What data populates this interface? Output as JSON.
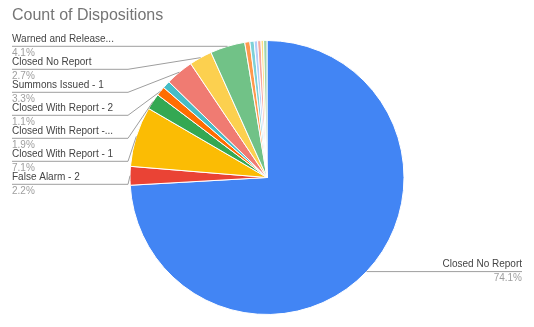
{
  "chart_data": {
    "type": "pie",
    "title": "Count of Dispositions",
    "categories": [
      "Closed No Report",
      "False Alarm - 2",
      "Closed With Report - 1",
      "Closed With Report -...",
      "Closed With Report - 2",
      null,
      "Summons Issued - 1",
      "Closed No Report",
      "Warned and Release...",
      null,
      null,
      null,
      null,
      null,
      null
    ],
    "values": [
      74.1,
      2.2,
      7.1,
      1.9,
      1.1,
      0.9,
      3.3,
      2.7,
      4.1,
      0.6,
      0.5,
      0.4,
      0.4,
      0.3,
      0.4
    ],
    "value_labels": [
      "74.1%",
      "2.2%",
      "7.1%",
      "1.9%",
      "1.1%",
      null,
      "3.3%",
      "2.7%",
      "4.1%",
      null,
      null,
      null,
      null,
      null,
      null
    ],
    "colors": [
      "#4285f4",
      "#ea4335",
      "#fbbc04",
      "#34a853",
      "#ff6d01",
      "#46bdc6",
      "#f07b72",
      "#fcd04f",
      "#71c287",
      "#ff994d",
      "#7ed1d7",
      "#b3cefb",
      "#f7a7a0",
      "#fdde80",
      "#a1d6ae"
    ],
    "data_labels": true
  }
}
